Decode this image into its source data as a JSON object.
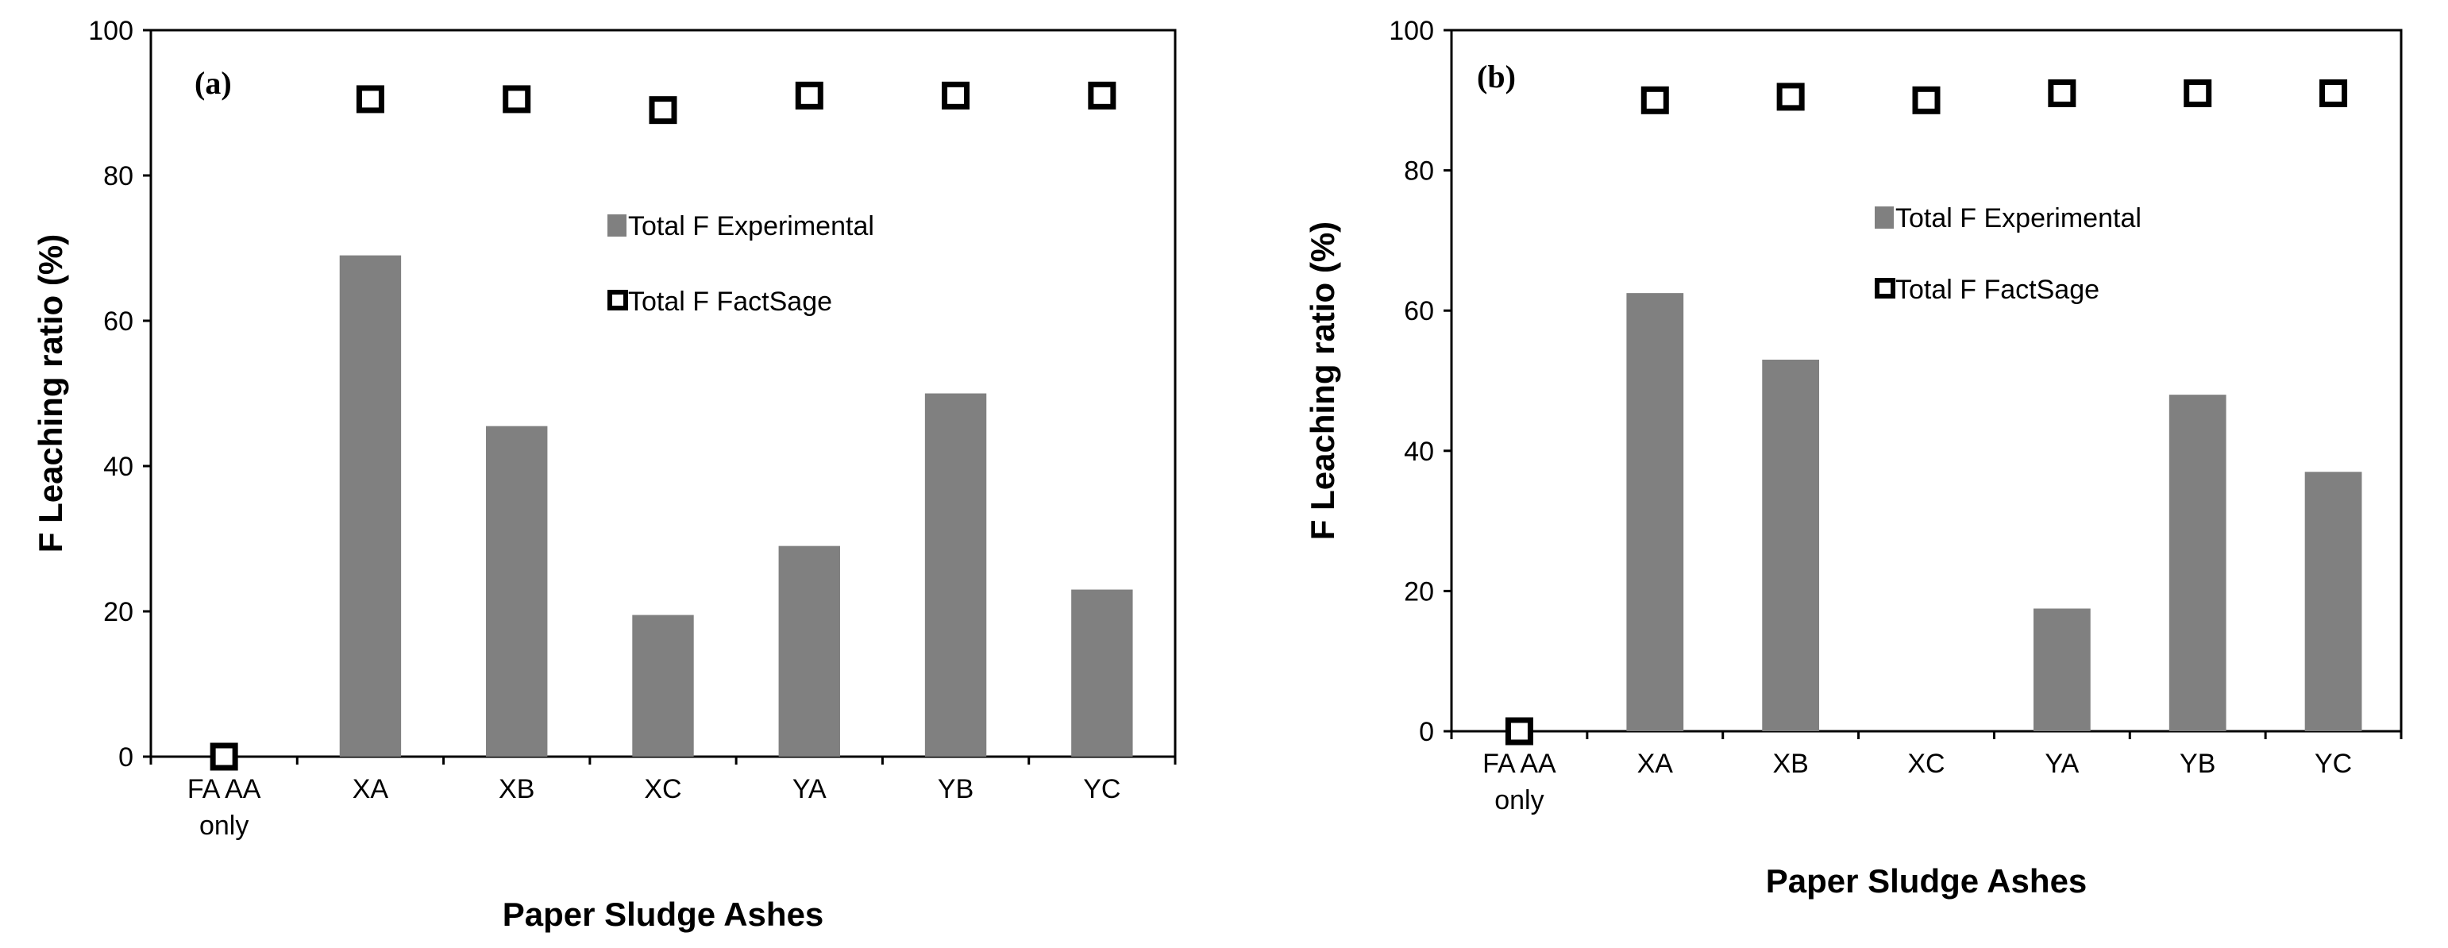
{
  "colors": {
    "bar": "#808080",
    "marker_stroke": "#000000",
    "marker_fill": "#ffffff",
    "axis": "#000000"
  },
  "chart_data": [
    {
      "type": "bar",
      "panel_label": "(a)",
      "categories": [
        "FA AA only",
        "XA",
        "XB",
        "XC",
        "YA",
        "YB",
        "YC"
      ],
      "category_lines": [
        [
          "FA AA",
          "only"
        ],
        [
          "XA"
        ],
        [
          "XB"
        ],
        [
          "XC"
        ],
        [
          "YA"
        ],
        [
          "YB"
        ],
        [
          "YC"
        ]
      ],
      "series": [
        {
          "name": "Total F Experimental",
          "kind": "bar",
          "values": [
            0,
            69,
            45.5,
            19.5,
            29,
            50,
            23
          ]
        },
        {
          "name": "Total F FactSage",
          "kind": "marker",
          "values": [
            0,
            90.5,
            90.5,
            89,
            91,
            91,
            91
          ]
        }
      ],
      "xlabel": "Paper Sludge Ashes",
      "ylabel": "F Leaching ratio (%)",
      "ylim": [
        0,
        100
      ],
      "yticks": [
        "0",
        "20",
        "40",
        "60",
        "80",
        "100"
      ],
      "legend": "upper-right"
    },
    {
      "type": "bar",
      "panel_label": "(b)",
      "categories": [
        "FA AA only",
        "XA",
        "XB",
        "XC",
        "YA",
        "YB",
        "YC"
      ],
      "category_lines": [
        [
          "FA AA",
          "only"
        ],
        [
          "XA"
        ],
        [
          "XB"
        ],
        [
          "XC"
        ],
        [
          "YA"
        ],
        [
          "YB"
        ],
        [
          "YC"
        ]
      ],
      "series": [
        {
          "name": "Total F Experimental",
          "kind": "bar",
          "values": [
            0,
            62.5,
            53,
            0,
            17.5,
            48,
            37
          ]
        },
        {
          "name": "Total F FactSage",
          "kind": "marker",
          "values": [
            0,
            90,
            90.5,
            90,
            91,
            91,
            91
          ]
        }
      ],
      "xlabel": "Paper Sludge Ashes",
      "ylabel": "F Leaching ratio (%)",
      "ylim": [
        0,
        100
      ],
      "yticks": [
        "0",
        "20",
        "40",
        "60",
        "80",
        "100"
      ],
      "legend": "upper-right"
    }
  ]
}
